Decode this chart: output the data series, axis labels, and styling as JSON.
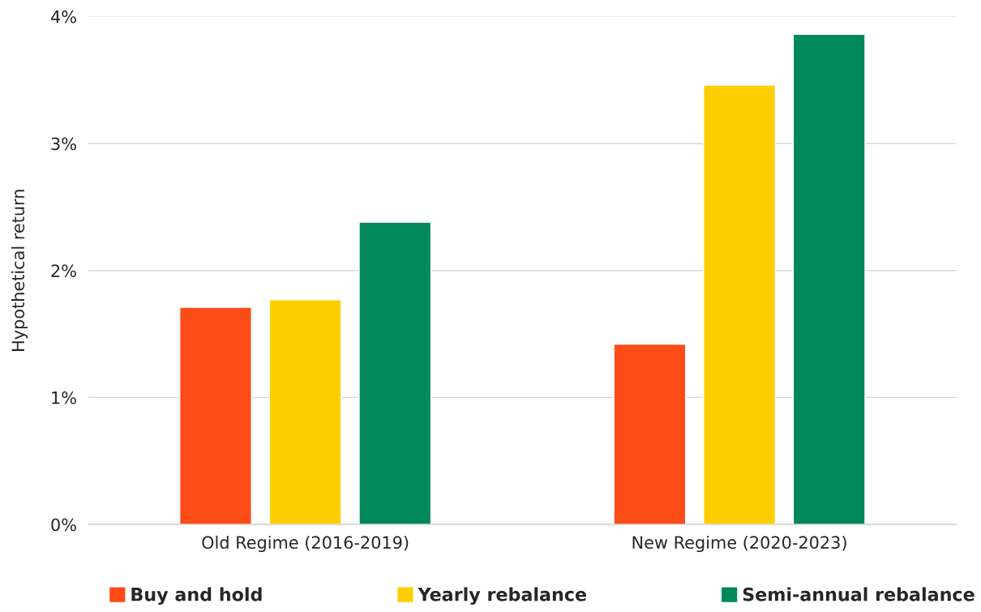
{
  "chart_data": {
    "type": "bar",
    "ylabel": "Hypothetical return",
    "categories": [
      "Old Regime (2016-2019)",
      "New Regime (2020-2023)"
    ],
    "series": [
      {
        "name": "Buy and hold",
        "color": "#fc4c17",
        "values": [
          1.71,
          1.42
        ]
      },
      {
        "name": "Yearly rebalance",
        "color": "#ffce00",
        "values": [
          1.77,
          3.46
        ]
      },
      {
        "name": "Semi-annual rebalance",
        "color": "#00875a",
        "values": [
          2.38,
          3.86
        ]
      }
    ],
    "ylim": [
      0,
      4
    ],
    "yticks": [
      {
        "value": 0,
        "label": "0%"
      },
      {
        "value": 1,
        "label": "1%"
      },
      {
        "value": 2,
        "label": "2%"
      },
      {
        "value": 3,
        "label": "3%"
      },
      {
        "value": 4,
        "label": "4%"
      }
    ],
    "grid": "y",
    "legend": "bottom"
  }
}
